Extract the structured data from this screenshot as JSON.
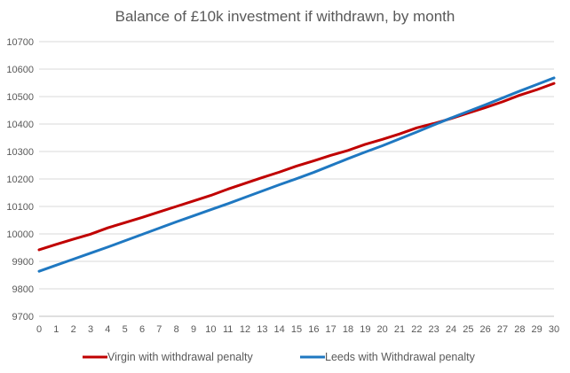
{
  "chart_data": {
    "type": "line",
    "title": "Balance of £10k investment if withdrawn, by month",
    "xlabel": "",
    "ylabel": "",
    "x": [
      0,
      1,
      2,
      3,
      4,
      5,
      6,
      7,
      8,
      9,
      10,
      11,
      12,
      13,
      14,
      15,
      16,
      17,
      18,
      19,
      20,
      21,
      22,
      23,
      24,
      25,
      26,
      27,
      28,
      29,
      30
    ],
    "ylim": [
      9700,
      10700
    ],
    "yticks": [
      9700,
      9800,
      9900,
      10000,
      10100,
      10200,
      10300,
      10400,
      10500,
      10600,
      10700
    ],
    "grid": true,
    "legend_position": "bottom",
    "series": [
      {
        "name": "Virgin with withdrawal penalty",
        "color": "#C00000",
        "values": [
          9942,
          9962,
          9981,
          9999,
          10022,
          10041,
          10060,
          10080,
          10100,
          10120,
          10140,
          10163,
          10184,
          10205,
          10225,
          10247,
          10266,
          10286,
          10304,
          10326,
          10344,
          10364,
          10386,
          10402,
          10420,
          10440,
          10460,
          10481,
          10505,
          10525,
          10548
        ]
      },
      {
        "name": "Leeds with Withdrawal penalty",
        "color": "#1F78C1",
        "values": [
          9864,
          9886,
          9908,
          9930,
          9952,
          9975,
          9998,
          10021,
          10044,
          10066,
          10088,
          10110,
          10133,
          10156,
          10179,
          10201,
          10224,
          10249,
          10274,
          10298,
          10321,
          10346,
          10371,
          10397,
          10422,
          10446,
          10470,
          10495,
          10520,
          10544,
          10568
        ]
      }
    ]
  }
}
